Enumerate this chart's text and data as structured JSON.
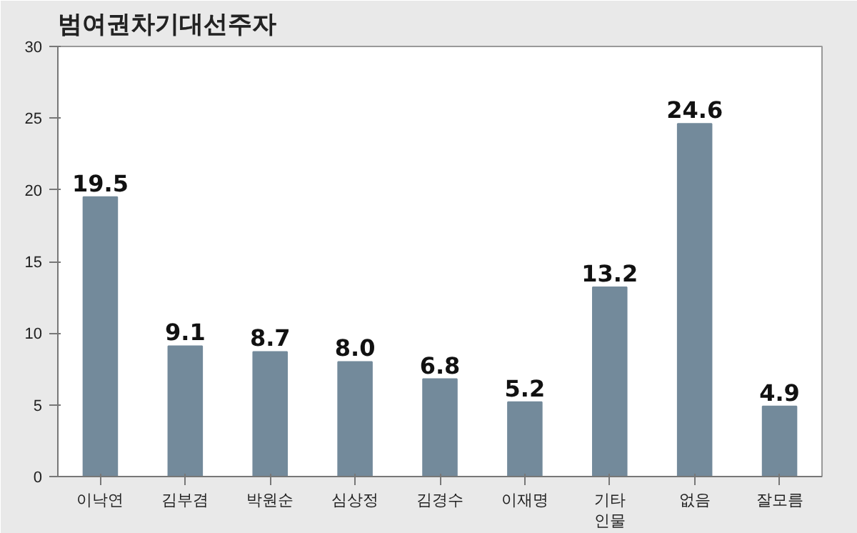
{
  "chart_data": {
    "type": "bar",
    "title": "범여권차기대선주자",
    "categories": [
      "이낙연",
      "김부겸",
      "박원순",
      "심상정",
      "김경수",
      "이재명",
      "기타 인물",
      "없음",
      "잘모름"
    ],
    "values": [
      19.5,
      9.1,
      8.7,
      8.0,
      6.8,
      5.2,
      13.2,
      24.6,
      4.9
    ],
    "value_labels": [
      "19.5",
      "9.1",
      "8.7",
      "8.0",
      "6.8",
      "5.2",
      "13.2",
      "24.6",
      "4.9"
    ],
    "color": "#738a9b",
    "ylim": [
      0,
      30
    ],
    "yticks": [
      0,
      5,
      10,
      15,
      20,
      25,
      30
    ],
    "grid": false
  }
}
